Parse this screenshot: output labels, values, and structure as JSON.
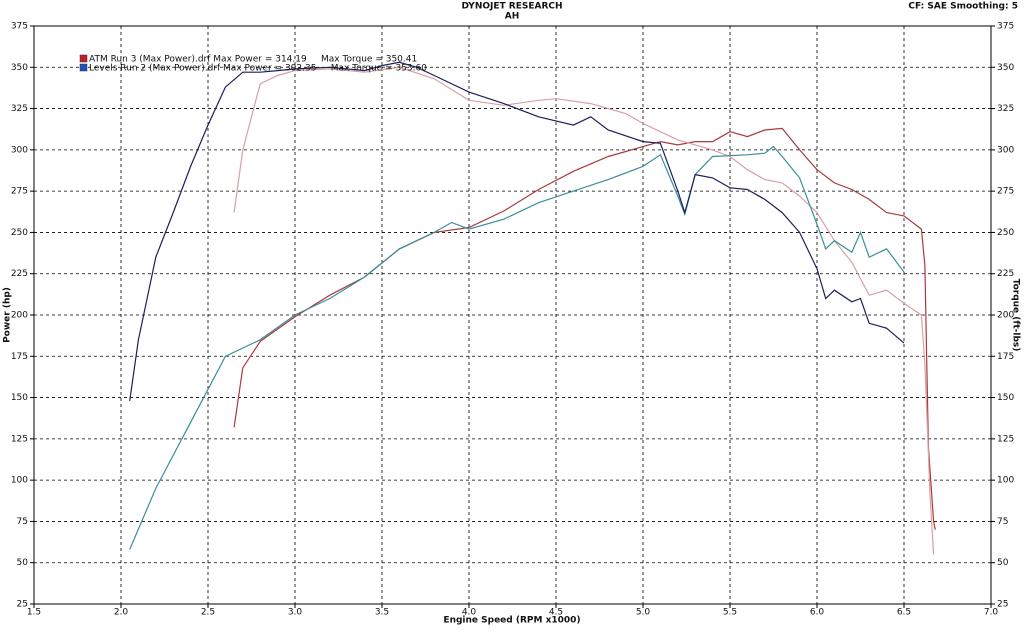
{
  "chart_data": {
    "type": "line",
    "title": "DYNOJET RESEARCH",
    "subtitle": "AH",
    "corner_note": "CF: SAE  Smoothing: 5",
    "x_label": "Engine Speed (RPM x1000)",
    "y_label": "Power (hp)",
    "y2_label": "Torque (ft-lbs)",
    "grid": true,
    "legend_position": "upper-left",
    "xlim": [
      1.5,
      7.0
    ],
    "xticks": [
      1.5,
      {
        "value": 2,
        "label": "2.0"
      },
      2.5,
      {
        "value": 3,
        "label": "3.0"
      },
      3.5,
      {
        "value": 4,
        "label": "4.0"
      },
      4.5,
      {
        "value": 5,
        "label": "5.0"
      },
      5.5,
      {
        "value": 6,
        "label": "6.0"
      },
      6.5,
      {
        "value": 7,
        "label": "7.0"
      }
    ],
    "ylim": [
      25,
      375
    ],
    "yticks": [
      25,
      50,
      75,
      100,
      125,
      150,
      175,
      200,
      225,
      250,
      275,
      300,
      325,
      350,
      375
    ],
    "y2lim": [
      25,
      375
    ],
    "y2ticks": [
      25,
      50,
      75,
      100,
      125,
      150,
      175,
      200,
      225,
      250,
      275,
      300,
      325,
      350,
      375
    ],
    "runs": [
      {
        "name": "ATM Run 3 (Max Power).drf Max Power = 314.19     Max Torque = 350.41",
        "color": "#c0202a",
        "power": {
          "color": "#a83a3a",
          "x": [
            2.65,
            2.7,
            2.8,
            3.0,
            3.2,
            3.4,
            3.6,
            3.8,
            4.0,
            4.2,
            4.4,
            4.6,
            4.8,
            5.0,
            5.1,
            5.2,
            5.3,
            5.4,
            5.5,
            5.6,
            5.7,
            5.8,
            5.9,
            6.0,
            6.1,
            6.2,
            6.3,
            6.4,
            6.5,
            6.6,
            6.62,
            6.64,
            6.67,
            6.68
          ],
          "values": [
            132,
            168,
            184,
            199,
            212,
            223,
            240,
            250,
            253,
            263,
            276,
            287,
            296,
            302,
            305,
            303,
            305,
            305,
            311,
            308,
            312,
            313,
            300,
            288,
            280,
            276,
            270,
            262,
            260,
            252,
            230,
            120,
            75,
            70
          ]
        },
        "torque": {
          "color": "#d9a0a4",
          "axis": "y2",
          "x": [
            2.65,
            2.7,
            2.8,
            2.9,
            3.0,
            3.2,
            3.4,
            3.6,
            3.8,
            4.0,
            4.2,
            4.4,
            4.5,
            4.7,
            4.9,
            5.0,
            5.2,
            5.4,
            5.5,
            5.6,
            5.7,
            5.8,
            5.9,
            6.0,
            6.1,
            6.2,
            6.3,
            6.4,
            6.5,
            6.6,
            6.62,
            6.65,
            6.67
          ],
          "values": [
            262,
            300,
            340,
            345,
            348,
            349,
            347,
            350,
            343,
            330,
            327,
            330,
            331,
            328,
            322,
            316,
            306,
            300,
            296,
            288,
            282,
            280,
            272,
            262,
            245,
            232,
            212,
            215,
            207,
            200,
            170,
            90,
            55
          ]
        }
      },
      {
        "name": "Levels Run 2 (Max Power).drf Max Power = 302.35     Max Torque = 353.60",
        "color": "#2050c0",
        "power": {
          "color": "#3a8f9a",
          "x": [
            2.05,
            2.2,
            2.4,
            2.5,
            2.6,
            2.8,
            3.0,
            3.2,
            3.4,
            3.6,
            3.8,
            3.9,
            4.0,
            4.2,
            4.4,
            4.6,
            4.8,
            5.0,
            5.1,
            5.2,
            5.24,
            5.3,
            5.4,
            5.6,
            5.7,
            5.75,
            5.8,
            5.9,
            6.0,
            6.05,
            6.1,
            6.2,
            6.25,
            6.3,
            6.4,
            6.5
          ],
          "values": [
            58,
            95,
            135,
            155,
            175,
            185,
            200,
            210,
            223,
            240,
            250,
            256,
            252,
            258,
            268,
            275,
            282,
            290,
            297,
            272,
            261,
            285,
            296,
            297,
            298,
            302,
            296,
            283,
            255,
            240,
            245,
            238,
            250,
            235,
            240,
            226
          ]
        },
        "torque": {
          "color": "#1c1f5a",
          "axis": "y2",
          "x": [
            2.05,
            2.1,
            2.2,
            2.3,
            2.4,
            2.5,
            2.6,
            2.7,
            2.8,
            2.9,
            3.0,
            3.2,
            3.4,
            3.5,
            3.6,
            3.7,
            3.8,
            4.0,
            4.2,
            4.4,
            4.6,
            4.7,
            4.8,
            5.0,
            5.1,
            5.2,
            5.24,
            5.3,
            5.4,
            5.5,
            5.6,
            5.7,
            5.8,
            5.9,
            6.0,
            6.05,
            6.1,
            6.2,
            6.25,
            6.3,
            6.4,
            6.5
          ],
          "values": [
            148,
            185,
            235,
            262,
            290,
            315,
            338,
            347,
            347,
            348,
            349,
            350,
            348,
            351,
            353,
            350,
            345,
            335,
            328,
            320,
            315,
            320,
            312,
            305,
            304,
            275,
            262,
            285,
            283,
            277,
            276,
            270,
            262,
            250,
            228,
            210,
            215,
            208,
            210,
            195,
            192,
            183
          ]
        }
      }
    ]
  }
}
